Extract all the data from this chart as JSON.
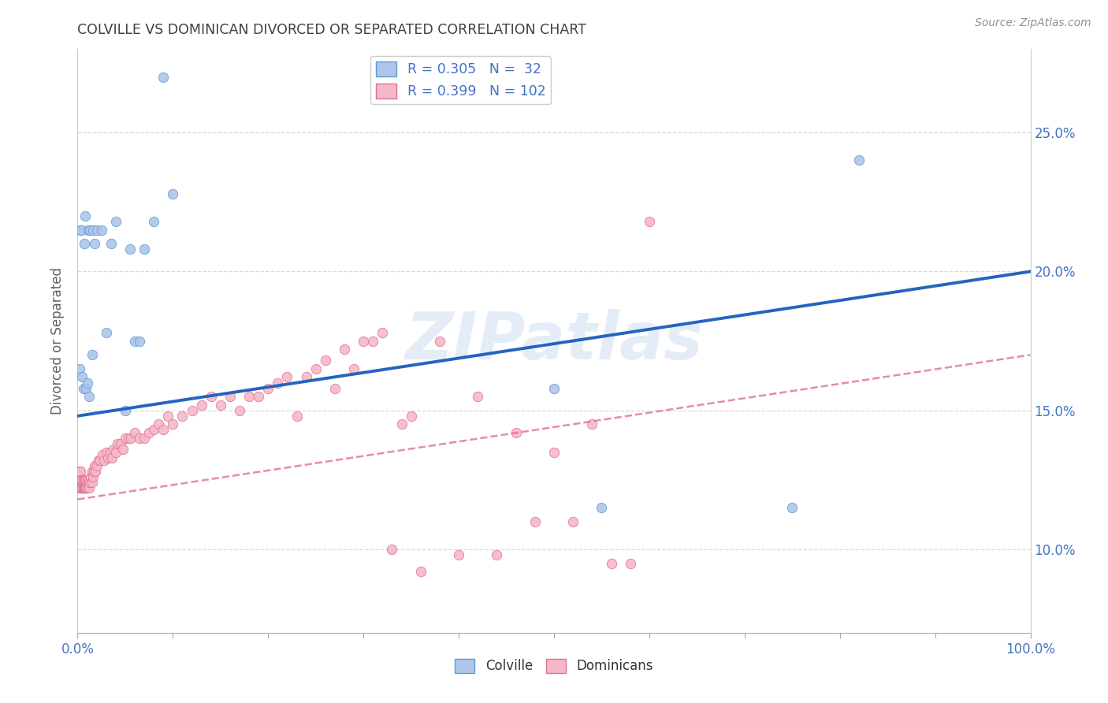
{
  "title": "COLVILLE VS DOMINICAN DIVORCED OR SEPARATED CORRELATION CHART",
  "source": "Source: ZipAtlas.com",
  "ylabel": "Divorced or Separated",
  "watermark": "ZIPatlas",
  "colville_color": "#aec6e8",
  "dominican_color": "#f5b8c8",
  "colville_edge_color": "#5b9bd5",
  "dominican_edge_color": "#e07090",
  "colville_line_color": "#2563c0",
  "dominican_line_color": "#d05878",
  "xlim": [
    0.0,
    1.0
  ],
  "ylim": [
    0.07,
    0.28
  ],
  "ytick_values": [
    0.1,
    0.15,
    0.2,
    0.25
  ],
  "ytick_labels": [
    "10.0%",
    "15.0%",
    "20.0%",
    "25.0%"
  ],
  "xtick_values": [
    0.0,
    0.1,
    0.2,
    0.3,
    0.4,
    0.5,
    0.6,
    0.7,
    0.8,
    0.9,
    1.0
  ],
  "colville_x": [
    0.002,
    0.003,
    0.004,
    0.005,
    0.006,
    0.007,
    0.008,
    0.009,
    0.01,
    0.011,
    0.012,
    0.013,
    0.015,
    0.016,
    0.018,
    0.02,
    0.025,
    0.03,
    0.035,
    0.04,
    0.05,
    0.055,
    0.06,
    0.065,
    0.07,
    0.08,
    0.09,
    0.1,
    0.5,
    0.55,
    0.75,
    0.82
  ],
  "colville_y": [
    0.165,
    0.215,
    0.215,
    0.162,
    0.158,
    0.21,
    0.22,
    0.158,
    0.16,
    0.215,
    0.155,
    0.215,
    0.17,
    0.215,
    0.21,
    0.215,
    0.215,
    0.178,
    0.21,
    0.218,
    0.15,
    0.208,
    0.175,
    0.175,
    0.208,
    0.218,
    0.27,
    0.228,
    0.158,
    0.115,
    0.115,
    0.24
  ],
  "dominican_x": [
    0.001,
    0.001,
    0.002,
    0.002,
    0.003,
    0.003,
    0.003,
    0.004,
    0.004,
    0.005,
    0.005,
    0.005,
    0.006,
    0.006,
    0.006,
    0.007,
    0.007,
    0.007,
    0.008,
    0.008,
    0.008,
    0.009,
    0.009,
    0.009,
    0.01,
    0.01,
    0.01,
    0.011,
    0.012,
    0.012,
    0.013,
    0.014,
    0.015,
    0.015,
    0.016,
    0.017,
    0.018,
    0.019,
    0.02,
    0.022,
    0.024,
    0.026,
    0.028,
    0.03,
    0.032,
    0.034,
    0.036,
    0.038,
    0.04,
    0.042,
    0.045,
    0.048,
    0.05,
    0.053,
    0.056,
    0.06,
    0.065,
    0.07,
    0.075,
    0.08,
    0.085,
    0.09,
    0.095,
    0.1,
    0.11,
    0.12,
    0.13,
    0.14,
    0.15,
    0.16,
    0.17,
    0.18,
    0.19,
    0.2,
    0.21,
    0.22,
    0.23,
    0.24,
    0.25,
    0.26,
    0.27,
    0.28,
    0.29,
    0.3,
    0.31,
    0.32,
    0.33,
    0.34,
    0.35,
    0.36,
    0.38,
    0.4,
    0.42,
    0.44,
    0.46,
    0.48,
    0.5,
    0.52,
    0.54,
    0.56,
    0.58,
    0.6
  ],
  "dominican_y": [
    0.128,
    0.122,
    0.122,
    0.128,
    0.122,
    0.122,
    0.128,
    0.122,
    0.125,
    0.122,
    0.122,
    0.125,
    0.122,
    0.122,
    0.125,
    0.122,
    0.122,
    0.125,
    0.122,
    0.122,
    0.125,
    0.122,
    0.122,
    0.125,
    0.122,
    0.122,
    0.125,
    0.124,
    0.122,
    0.125,
    0.124,
    0.126,
    0.124,
    0.128,
    0.126,
    0.128,
    0.13,
    0.128,
    0.13,
    0.132,
    0.132,
    0.134,
    0.132,
    0.135,
    0.133,
    0.135,
    0.133,
    0.136,
    0.135,
    0.138,
    0.138,
    0.136,
    0.14,
    0.14,
    0.14,
    0.142,
    0.14,
    0.14,
    0.142,
    0.143,
    0.145,
    0.143,
    0.148,
    0.145,
    0.148,
    0.15,
    0.152,
    0.155,
    0.152,
    0.155,
    0.15,
    0.155,
    0.155,
    0.158,
    0.16,
    0.162,
    0.148,
    0.162,
    0.165,
    0.168,
    0.158,
    0.172,
    0.165,
    0.175,
    0.175,
    0.178,
    0.1,
    0.145,
    0.148,
    0.092,
    0.175,
    0.098,
    0.155,
    0.098,
    0.142,
    0.11,
    0.135,
    0.11,
    0.145,
    0.095,
    0.095,
    0.218
  ],
  "colville_trend_x": [
    0.0,
    1.0
  ],
  "colville_trend_y": [
    0.148,
    0.2
  ],
  "dominican_trend_x": [
    0.0,
    1.0
  ],
  "dominican_trend_y": [
    0.118,
    0.17
  ],
  "legend1_items": [
    "R = 0.305   N =  32",
    "R = 0.399   N = 102"
  ],
  "legend2_items": [
    "Colville",
    "Dominicans"
  ],
  "background_color": "#ffffff",
  "grid_color": "#d0d0d0",
  "title_color": "#404040",
  "source_color": "#909090",
  "ylabel_color": "#606060",
  "tick_color": "#4472c4"
}
